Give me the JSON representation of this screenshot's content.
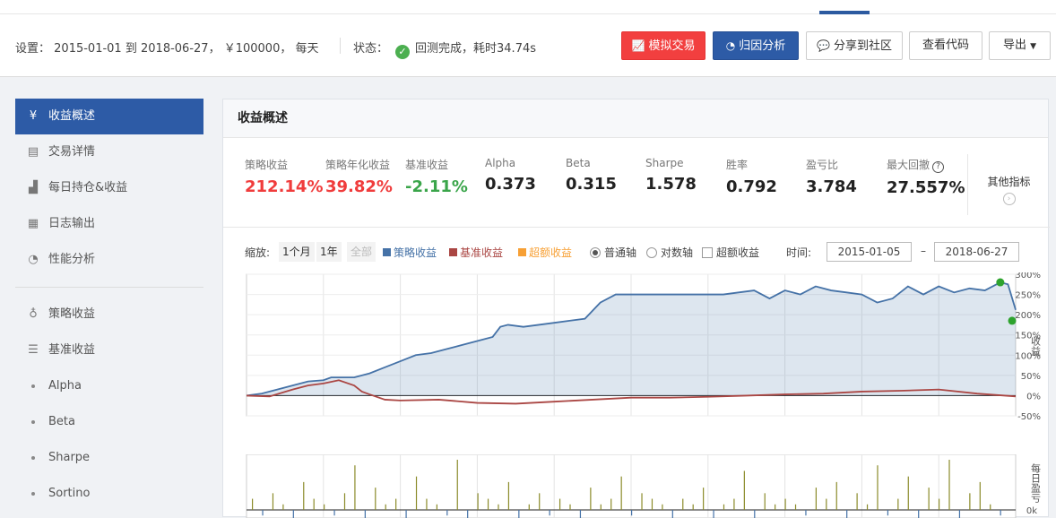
{
  "header": {
    "settings_label": "设置：",
    "start_date": "2015-01-01",
    "to_label": "到",
    "end_date": "2018-06-27",
    "capital": "￥100000",
    "frequency": "每天",
    "status_label": "状态：",
    "status_text": "回测完成，耗时34.74s",
    "buttons": {
      "simulate": "模拟交易",
      "attribution": "归因分析",
      "share": "分享到社区",
      "view_code": "查看代码",
      "export": "导出"
    },
    "colors": {
      "red_button": "#f23f3f",
      "blue_button": "#2d5ba6"
    }
  },
  "sidebar": {
    "items": [
      {
        "label": "收益概述",
        "icon": "yen-icon",
        "active": true
      },
      {
        "label": "交易详情",
        "icon": "document-icon"
      },
      {
        "label": "每日持仓&收益",
        "icon": "bar-chart-icon"
      },
      {
        "label": "日志输出",
        "icon": "calendar-icon"
      },
      {
        "label": "性能分析",
        "icon": "pie-chart-icon"
      },
      {
        "label": "策略收益",
        "icon": "lightbulb-icon"
      },
      {
        "label": "基准收益",
        "icon": "database-icon"
      },
      {
        "label": "Alpha"
      },
      {
        "label": "Beta"
      },
      {
        "label": "Sharpe"
      },
      {
        "label": "Sortino"
      }
    ]
  },
  "panel": {
    "title": "收益概述",
    "metrics": [
      {
        "label": "策略收益",
        "value": "212.14%",
        "color": "red"
      },
      {
        "label": "策略年化收益",
        "value": "39.82%",
        "color": "red"
      },
      {
        "label": "基准收益",
        "value": "-2.11%",
        "color": "green"
      },
      {
        "label": "Alpha",
        "value": "0.373"
      },
      {
        "label": "Beta",
        "value": "0.315"
      },
      {
        "label": "Sharpe",
        "value": "1.578"
      },
      {
        "label": "胜率",
        "value": "0.792"
      },
      {
        "label": "盈亏比",
        "value": "3.784"
      },
      {
        "label": "最大回撤",
        "value": "27.557%"
      }
    ],
    "other_metrics": "其他指标",
    "controls": {
      "zoom_label": "缩放:",
      "zoom_options": [
        "1个月",
        "1年",
        "全部"
      ],
      "legend": [
        {
          "label": "策略收益",
          "color": "#4572a7"
        },
        {
          "label": "基准收益",
          "color": "#aa4643"
        },
        {
          "label": "超额收益",
          "color": "#f7a035"
        }
      ],
      "axis_linear": "普通轴",
      "axis_log": "对数轴",
      "excess_checkbox": "超额收益",
      "time_label": "时间:",
      "date_from": "2015-01-05",
      "date_sep": "–",
      "date_to": "2018-06-27"
    }
  },
  "chart_data": [
    {
      "type": "area",
      "y_axis_label": "收益",
      "yticks": [
        "300%",
        "250%",
        "200%",
        "150%",
        "100%",
        "50%",
        "0%",
        "-50%"
      ],
      "ylim": [
        -50,
        300
      ],
      "x_range": [
        "2015-01-05",
        "2018-06-27"
      ],
      "grid": true,
      "series": [
        {
          "name": "策略收益",
          "color": "#4572a7",
          "x": [
            0,
            0.02,
            0.04,
            0.06,
            0.08,
            0.1,
            0.11,
            0.12,
            0.14,
            0.16,
            0.18,
            0.2,
            0.22,
            0.24,
            0.26,
            0.28,
            0.3,
            0.32,
            0.33,
            0.34,
            0.36,
            0.38,
            0.4,
            0.42,
            0.44,
            0.46,
            0.48,
            0.5,
            0.52,
            0.54,
            0.56,
            0.58,
            0.6,
            0.62,
            0.64,
            0.66,
            0.68,
            0.7,
            0.72,
            0.74,
            0.76,
            0.78,
            0.8,
            0.82,
            0.84,
            0.86,
            0.88,
            0.9,
            0.92,
            0.94,
            0.96,
            0.98,
            0.99,
            1.0
          ],
          "y": [
            0,
            5,
            15,
            25,
            35,
            38,
            45,
            45,
            45,
            55,
            70,
            85,
            100,
            105,
            115,
            125,
            135,
            145,
            170,
            175,
            170,
            175,
            180,
            185,
            190,
            230,
            250,
            250,
            250,
            250,
            250,
            250,
            250,
            250,
            255,
            260,
            240,
            260,
            250,
            270,
            260,
            255,
            250,
            230,
            240,
            270,
            250,
            270,
            255,
            265,
            260,
            280,
            275,
            212
          ]
        },
        {
          "name": "基准收益",
          "color": "#aa4643",
          "x": [
            0,
            0.03,
            0.06,
            0.08,
            0.1,
            0.12,
            0.14,
            0.15,
            0.16,
            0.18,
            0.2,
            0.25,
            0.3,
            0.35,
            0.4,
            0.45,
            0.5,
            0.55,
            0.6,
            0.65,
            0.7,
            0.75,
            0.8,
            0.85,
            0.9,
            0.95,
            1.0
          ],
          "y": [
            0,
            -2,
            15,
            25,
            30,
            38,
            25,
            10,
            3,
            -10,
            -12,
            -10,
            -18,
            -20,
            -15,
            -10,
            -5,
            -5,
            -3,
            0,
            3,
            5,
            10,
            12,
            15,
            5,
            -2
          ]
        }
      ]
    },
    {
      "type": "bar",
      "y_axis_label": "每日盈亏",
      "yticks": [
        "0k"
      ],
      "note": "daily profit/loss bars (values estimated)",
      "values": [
        2,
        -1,
        3,
        1,
        -2,
        5,
        2,
        1,
        -1,
        3,
        8,
        -2,
        4,
        1,
        2,
        -3,
        6,
        2,
        1,
        -1,
        9,
        -4,
        3,
        2,
        1,
        5,
        -2,
        1,
        3,
        -1,
        2,
        1,
        -2,
        4,
        1,
        2,
        6,
        -1,
        3,
        2,
        1,
        -2,
        2,
        1,
        4,
        -3,
        1,
        2,
        7,
        -2,
        3,
        1,
        2,
        1,
        -1,
        4,
        2,
        5,
        -2,
        3,
        1,
        8,
        -1,
        2,
        6,
        -3,
        4,
        2,
        9,
        -2,
        3,
        5,
        1,
        -1
      ]
    }
  ]
}
